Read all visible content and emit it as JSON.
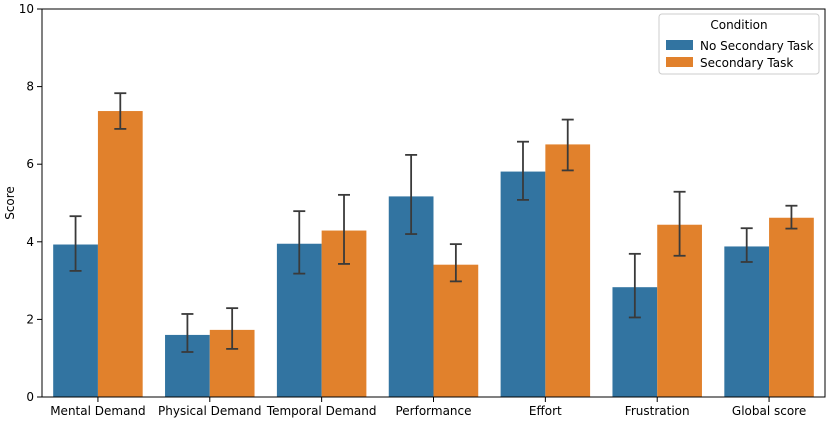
{
  "chart_data": {
    "type": "bar",
    "title": "",
    "xlabel": "",
    "ylabel": "Score",
    "ylim": [
      0,
      10
    ],
    "yticks": [
      0,
      2,
      4,
      6,
      8,
      10
    ],
    "categories": [
      "Mental Demand",
      "Physical Demand",
      "Temporal Demand",
      "Performance",
      "Effort",
      "Frustration",
      "Global score"
    ],
    "legend": {
      "title": "Condition",
      "position": "top-right"
    },
    "series": [
      {
        "name": "No Secondary Task",
        "color": "#3274a1",
        "values": [
          3.93,
          1.6,
          3.95,
          5.17,
          5.81,
          2.83,
          3.88
        ],
        "err_low": [
          3.25,
          1.16,
          3.18,
          4.2,
          5.08,
          2.05,
          3.48
        ],
        "err_high": [
          4.66,
          2.14,
          4.79,
          6.24,
          6.58,
          3.69,
          4.35
        ]
      },
      {
        "name": "Secondary Task",
        "color": "#e1812c",
        "values": [
          7.37,
          1.73,
          4.29,
          3.41,
          6.51,
          4.44,
          4.62
        ],
        "err_low": [
          6.91,
          1.24,
          3.43,
          2.98,
          5.84,
          3.64,
          4.34
        ],
        "err_high": [
          7.83,
          2.29,
          5.21,
          3.94,
          7.15,
          5.29,
          4.93
        ]
      }
    ]
  }
}
